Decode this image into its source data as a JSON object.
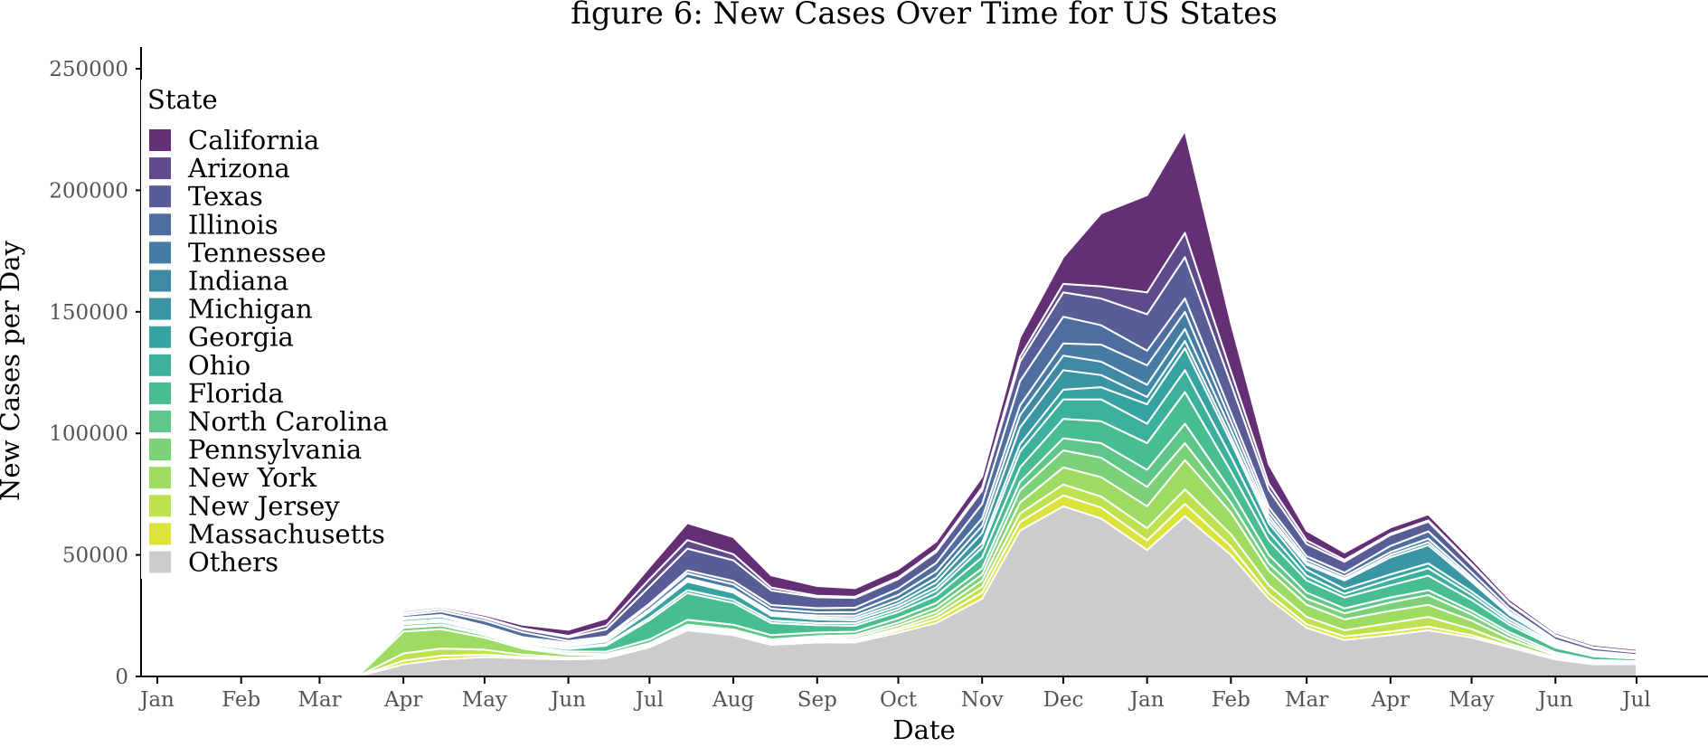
{
  "chart_data": {
    "type": "area",
    "stacked": true,
    "title": "figure 6: New Cases Over Time for US States",
    "xlabel": "Date",
    "ylabel": "New Cases per Day",
    "ylim": [
      0,
      255000
    ],
    "yticks": [
      0,
      50000,
      100000,
      150000,
      200000,
      250000
    ],
    "ytick_labels": [
      "0",
      "50000",
      "100000",
      "150000",
      "200000",
      "250000"
    ],
    "xticks": [
      "Jan",
      "Feb",
      "Mar",
      "Apr",
      "May",
      "Jun",
      "Jul",
      "Aug",
      "Sep",
      "Oct",
      "Nov",
      "Dec",
      "Jan",
      "Feb",
      "Mar",
      "Apr",
      "May",
      "Jun",
      "Jul"
    ],
    "x": [
      "2020-01-01",
      "2020-02-01",
      "2020-03-01",
      "2020-03-15",
      "2020-04-01",
      "2020-04-15",
      "2020-05-01",
      "2020-05-15",
      "2020-06-01",
      "2020-06-15",
      "2020-07-01",
      "2020-07-15",
      "2020-08-01",
      "2020-08-15",
      "2020-09-01",
      "2020-09-15",
      "2020-10-01",
      "2020-10-15",
      "2020-11-01",
      "2020-11-15",
      "2020-12-01",
      "2020-12-15",
      "2021-01-01",
      "2021-01-15",
      "2021-02-01",
      "2021-02-15",
      "2021-03-01",
      "2021-03-15",
      "2021-04-01",
      "2021-04-15",
      "2021-05-01",
      "2021-05-15",
      "2021-06-01",
      "2021-06-15",
      "2021-07-01"
    ],
    "legend_title": "State",
    "legend_position": "left",
    "grid": false,
    "series": [
      {
        "name": "Others",
        "color": "#cccccc",
        "values": [
          0,
          0,
          0,
          0,
          5000,
          7000,
          8000,
          7500,
          7000,
          7500,
          12000,
          19000,
          17000,
          13000,
          14000,
          14000,
          18000,
          22000,
          32000,
          60000,
          70000,
          65000,
          52000,
          66000,
          50000,
          32000,
          20000,
          15000,
          17000,
          19000,
          16000,
          12000,
          7000,
          5000,
          5000
        ]
      },
      {
        "name": "Massachusetts",
        "color": "#dce33a",
        "values": [
          0,
          0,
          0,
          0,
          1500,
          1500,
          1000,
          500,
          300,
          300,
          300,
          500,
          500,
          500,
          600,
          700,
          1000,
          1500,
          2500,
          3500,
          4500,
          4500,
          4000,
          5000,
          3500,
          2000,
          1500,
          1500,
          1500,
          1500,
          1000,
          500,
          300,
          200,
          100
        ]
      },
      {
        "name": "New Jersey",
        "color": "#bde14f",
        "values": [
          0,
          0,
          0,
          0,
          3000,
          3000,
          2000,
          1000,
          500,
          300,
          300,
          400,
          400,
          400,
          500,
          600,
          800,
          1500,
          2500,
          3500,
          4500,
          4500,
          5000,
          6000,
          5000,
          3500,
          3000,
          2500,
          3500,
          4000,
          2500,
          1000,
          500,
          300,
          200
        ]
      },
      {
        "name": "New York",
        "color": "#9ddb63",
        "values": [
          0,
          0,
          0,
          0,
          9000,
          8000,
          5000,
          2500,
          1200,
          700,
          600,
          700,
          700,
          700,
          800,
          900,
          1200,
          1500,
          2500,
          4500,
          7000,
          8000,
          9000,
          12000,
          9000,
          6000,
          5000,
          4500,
          5000,
          5000,
          3500,
          2000,
          800,
          500,
          400
        ]
      },
      {
        "name": "Pennsylvania",
        "color": "#7bd178",
        "values": [
          0,
          0,
          0,
          0,
          1500,
          1500,
          1000,
          700,
          500,
          400,
          500,
          700,
          700,
          600,
          700,
          800,
          1200,
          1700,
          2500,
          5000,
          7000,
          8000,
          8000,
          7000,
          4000,
          3000,
          2500,
          2500,
          3500,
          4000,
          2500,
          1500,
          500,
          300,
          200
        ]
      },
      {
        "name": "North Carolina",
        "color": "#5ec688",
        "values": [
          0,
          0,
          0,
          0,
          500,
          500,
          600,
          700,
          800,
          1000,
          1500,
          2000,
          2000,
          1800,
          1500,
          1400,
          1800,
          2000,
          2500,
          3500,
          5000,
          6000,
          7000,
          8000,
          5000,
          3500,
          2500,
          2000,
          2000,
          2000,
          1500,
          1200,
          800,
          500,
          400
        ]
      },
      {
        "name": "Florida",
        "color": "#47bd90",
        "values": [
          0,
          0,
          0,
          0,
          1000,
          1000,
          800,
          700,
          1000,
          2500,
          8000,
          11000,
          9000,
          5000,
          3000,
          2500,
          2500,
          3000,
          4500,
          6000,
          8000,
          9000,
          11000,
          13000,
          8000,
          6000,
          5000,
          4500,
          5000,
          6000,
          4500,
          3000,
          2000,
          1500,
          1000
        ]
      },
      {
        "name": "Ohio",
        "color": "#3bb09b",
        "values": [
          0,
          0,
          0,
          0,
          500,
          500,
          500,
          500,
          500,
          600,
          1000,
          1200,
          1200,
          1000,
          900,
          1000,
          1200,
          2000,
          4000,
          6500,
          8000,
          9000,
          8000,
          9000,
          6000,
          3500,
          2000,
          1500,
          2500,
          3000,
          2000,
          1200,
          600,
          400,
          300
        ]
      },
      {
        "name": "Georgia",
        "color": "#37a3a0",
        "values": [
          0,
          0,
          0,
          0,
          500,
          600,
          700,
          700,
          800,
          1000,
          2500,
          3500,
          3000,
          2000,
          1500,
          1200,
          1200,
          1500,
          2000,
          3000,
          4000,
          5000,
          8000,
          9000,
          6000,
          3500,
          2500,
          2000,
          2000,
          2000,
          1500,
          1200,
          700,
          500,
          400
        ]
      },
      {
        "name": "Michigan",
        "color": "#3a96a3",
        "values": [
          0,
          0,
          0,
          0,
          1000,
          1000,
          600,
          500,
          300,
          300,
          500,
          700,
          700,
          700,
          800,
          900,
          1200,
          2000,
          4000,
          7000,
          8000,
          5000,
          3000,
          3000,
          2000,
          1500,
          2000,
          3500,
          7000,
          7500,
          4000,
          1800,
          600,
          300,
          200
        ]
      },
      {
        "name": "Indiana",
        "color": "#3f89a4",
        "values": [
          0,
          0,
          0,
          0,
          400,
          400,
          500,
          500,
          400,
          400,
          500,
          700,
          700,
          700,
          800,
          1000,
          1500,
          2000,
          3000,
          5000,
          6000,
          5500,
          5000,
          5000,
          3000,
          1500,
          800,
          700,
          1000,
          1200,
          900,
          600,
          300,
          200,
          150
        ]
      },
      {
        "name": "Tennessee",
        "color": "#467ca3",
        "values": [
          0,
          0,
          0,
          0,
          300,
          300,
          300,
          400,
          500,
          700,
          1500,
          2000,
          2000,
          1500,
          1300,
          1500,
          2000,
          2500,
          3000,
          4000,
          5000,
          7000,
          8000,
          7000,
          3500,
          1800,
          1200,
          1000,
          1200,
          1500,
          1000,
          700,
          400,
          300,
          200
        ]
      },
      {
        "name": "Illinois",
        "color": "#4f6ea0",
        "values": [
          0,
          0,
          0,
          0,
          1000,
          1500,
          2000,
          2000,
          800,
          700,
          800,
          1200,
          1400,
          1500,
          1700,
          1800,
          2500,
          3500,
          6000,
          10000,
          11000,
          8000,
          6000,
          5500,
          3500,
          2000,
          1500,
          1500,
          2500,
          3000,
          2000,
          1200,
          600,
          400,
          300
        ]
      },
      {
        "name": "Texas",
        "color": "#585d98",
        "values": [
          0,
          0,
          0,
          0,
          800,
          900,
          1000,
          1200,
          1500,
          3000,
          7000,
          9000,
          8500,
          6000,
          4500,
          4000,
          4000,
          4500,
          5500,
          8000,
          10000,
          11000,
          15000,
          17000,
          12000,
          7000,
          5000,
          4500,
          4500,
          4000,
          3000,
          2000,
          1500,
          1300,
          1100
        ]
      },
      {
        "name": "Arizona",
        "color": "#5f4b8b",
        "values": [
          0,
          0,
          0,
          0,
          200,
          200,
          300,
          400,
          600,
          1500,
          3000,
          3500,
          2500,
          1200,
          600,
          500,
          600,
          800,
          1200,
          2000,
          3500,
          5000,
          9000,
          10000,
          5000,
          2500,
          1500,
          800,
          600,
          500,
          500,
          400,
          400,
          300,
          300
        ]
      },
      {
        "name": "California",
        "color": "#652f76",
        "values": [
          0,
          0,
          0,
          0,
          800,
          800,
          1000,
          1500,
          2500,
          3000,
          5000,
          7000,
          7000,
          5000,
          4000,
          3500,
          3500,
          3500,
          4500,
          8000,
          11000,
          30000,
          40000,
          42000,
          20000,
          8000,
          4000,
          3000,
          2500,
          2500,
          2000,
          1500,
          1000,
          1000,
          1000
        ]
      }
    ]
  }
}
